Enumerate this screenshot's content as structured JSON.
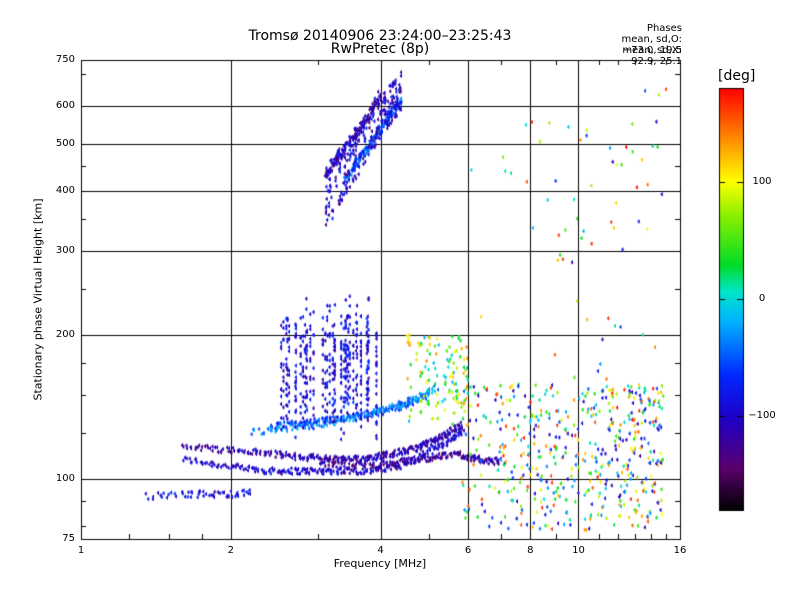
{
  "header": {
    "title": "Tromsø 20140906 23:24:00–23:25:43",
    "subtitle": "RwPretec (8p)"
  },
  "phases_box": {
    "heading": "Phases",
    "line_o": "mean, sd,O: −73.0, 19.5",
    "line_x": "mean, sd,X:  92.9, 25.1"
  },
  "colorbar": {
    "label": "[deg]",
    "ticks": [
      "100",
      "0",
      "−100"
    ],
    "tick_values": [
      100,
      0,
      -100
    ],
    "range": [
      -180,
      180
    ]
  },
  "chart_data": {
    "type": "scatter",
    "xlabel": "Frequency [MHz]",
    "ylabel": "Stationary phase Virtual Height [km]",
    "x_scale": "log",
    "y_scale": "log",
    "xlim": [
      1,
      16
    ],
    "ylim": [
      75,
      750
    ],
    "x_ticks": [
      1,
      2,
      4,
      6,
      8,
      10,
      16
    ],
    "x_tick_labels": [
      "1",
      "2",
      "4",
      "6",
      "8",
      "10",
      "16"
    ],
    "y_ticks": [
      75,
      100,
      200,
      300,
      400,
      500,
      600,
      750
    ],
    "y_tick_labels": [
      "75",
      "100",
      "200",
      "300",
      "400",
      "500",
      "600",
      "750"
    ],
    "grid": true,
    "color_encoding": "phase [deg]",
    "traces": [
      {
        "name_hint": "O-mode low E trace",
        "x": [
          1.6,
          1.8,
          2.0,
          2.2,
          2.4,
          2.6,
          2.8,
          3.0,
          3.2,
          3.5,
          3.8,
          4.1,
          4.4,
          4.7,
          5.0,
          5.3,
          5.6,
          5.9
        ],
        "y": [
          110,
          108,
          106,
          105,
          104,
          104,
          104,
          104,
          104,
          104,
          104,
          105,
          107,
          110,
          114,
          118,
          122,
          127
        ],
        "phase": -100
      },
      {
        "name_hint": "O-mode upper E trace",
        "x": [
          1.6,
          1.8,
          2.0,
          2.2,
          2.4,
          2.6,
          2.8,
          3.0,
          3.2,
          3.4,
          3.6,
          3.8,
          4.0,
          4.2,
          4.4,
          4.6,
          4.8,
          5.0,
          5.2,
          5.4,
          5.6,
          5.8
        ],
        "y": [
          117,
          116,
          115,
          114,
          113,
          112,
          111,
          111,
          110,
          110,
          110,
          111,
          112,
          113,
          114,
          115,
          117,
          119,
          121,
          124,
          127,
          130
        ],
        "phase": -110
      },
      {
        "name_hint": "X-mode E trace",
        "x": [
          3.0,
          3.3,
          3.6,
          3.9,
          4.2,
          4.5,
          4.8,
          5.1,
          5.4,
          5.7,
          6.0,
          6.3,
          6.6,
          7.0
        ],
        "y": [
          108,
          107,
          107,
          107,
          108,
          109,
          110,
          111,
          112,
          113,
          111,
          110,
          109,
          109
        ],
        "phase": -120
      },
      {
        "name_hint": "Es low band",
        "x": [
          1.35,
          1.6,
          1.8,
          2.0,
          2.2
        ],
        "y": [
          92,
          93,
          93,
          93,
          94
        ],
        "phase": -90
      },
      {
        "name_hint": "Slanted trace 1",
        "x": [
          2.4,
          2.6,
          2.8,
          3.0,
          3.2,
          3.5,
          3.8,
          4.1,
          4.4,
          4.7,
          5.0
        ],
        "y": [
          128,
          130,
          131,
          132,
          133,
          135,
          136,
          139,
          142,
          146,
          150
        ],
        "phase": -60
      },
      {
        "name_hint": "Slanted trace 2",
        "x": [
          2.2,
          2.5,
          2.8,
          3.1,
          3.4,
          3.7,
          4.0,
          4.3,
          4.6,
          4.9,
          5.2
        ],
        "y": [
          125,
          127,
          129,
          131,
          133,
          136,
          139,
          142,
          146,
          150,
          155
        ],
        "phase": -30
      },
      {
        "name_hint": "F-layer cluster",
        "x": [
          3.1,
          3.2,
          3.3,
          3.4,
          3.5,
          3.6,
          3.7,
          3.8,
          3.9,
          4.0
        ],
        "y": [
          430,
          450,
          470,
          490,
          510,
          530,
          550,
          580,
          610,
          640
        ],
        "phase": -110
      },
      {
        "name_hint": "F-layer cluster X",
        "x": [
          3.4,
          3.5,
          3.6,
          3.7,
          3.8,
          3.9,
          4.0,
          4.1,
          4.2,
          4.3,
          4.4
        ],
        "y": [
          420,
          440,
          460,
          480,
          500,
          520,
          540,
          560,
          580,
          600,
          620
        ],
        "phase": -50
      }
    ]
  }
}
